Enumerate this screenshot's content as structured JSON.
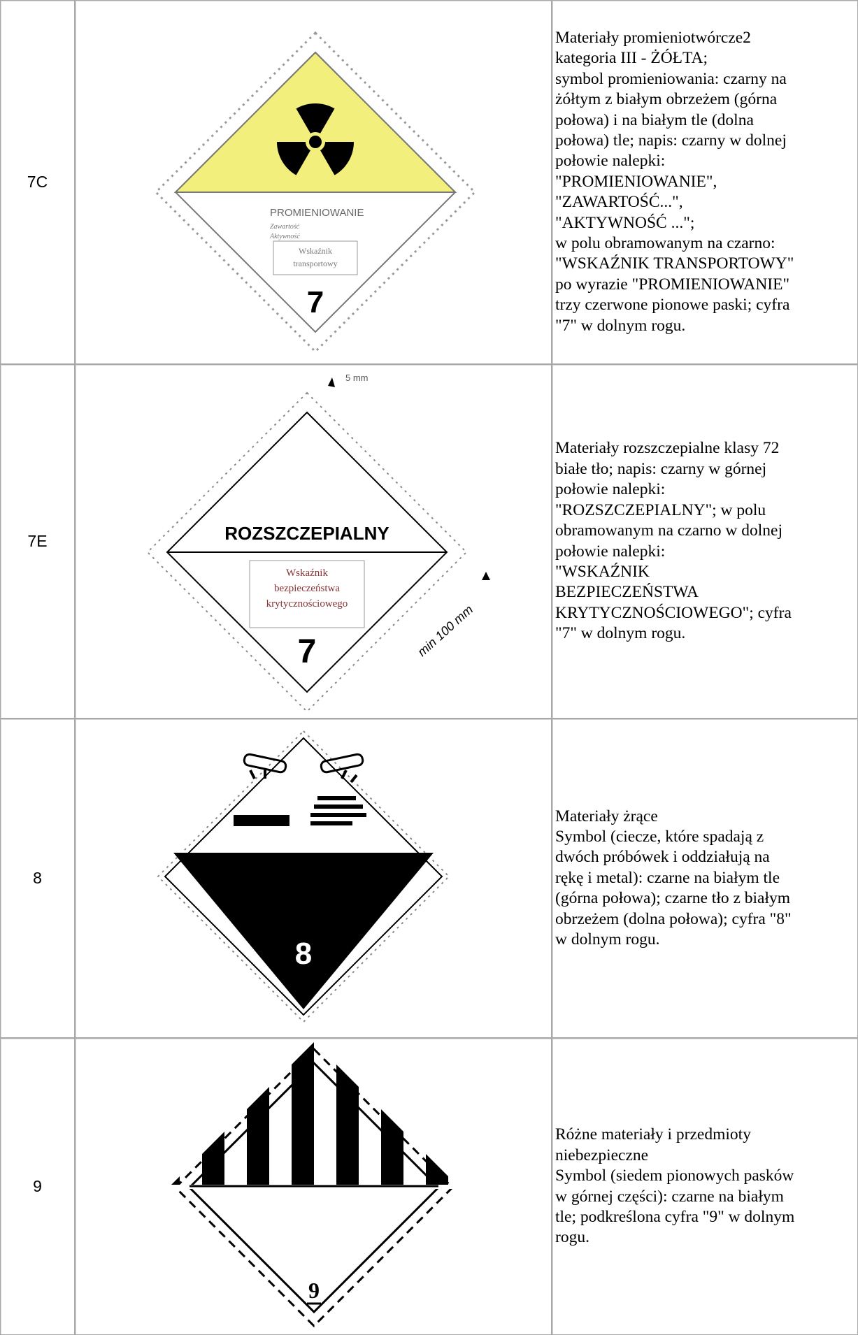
{
  "rows": [
    {
      "code": "7C",
      "description": [
        "Materiały promieniotwórcze2",
        "kategoria III - ŻÓŁTA;",
        "symbol promieniowania: czarny na",
        "żółtym z białym obrzeżem (górna",
        "połowa) i na białym tle (dolna",
        "połowa) tle; napis: czarny w dolnej",
        "połowie nalepki:",
        "\"PROMIENIOWANIE\",",
        "\"ZAWARTOŚĆ...\",",
        "\"AKTYWNOŚĆ ...\";",
        "w polu obramowanym na czarno:",
        "\"WSKAŹNIK TRANSPORTOWY\"",
        "po wyrazie \"PROMIENIOWANIE\"",
        "trzy czerwone pionowe paski; cyfra",
        "\"7\" w dolnym rogu."
      ],
      "placard": {
        "heading": "PROMIENIOWANIE",
        "small": [
          "Zawartość",
          "Aktywność"
        ],
        "box": [
          "Wskaźnik",
          "transportowy"
        ],
        "number": "7"
      }
    },
    {
      "code": "7E",
      "description": [
        "Materiały rozszczepialne klasy 72",
        "białe tło; napis: czarny w górnej",
        "połowie nalepki:",
        "\"ROZSZCZEPIALNY\"; w polu",
        "obramowanym na czarno w dolnej",
        "połowie nalepki:",
        "\"WSKAŹNIK",
        "BEZPIECZEŃSTWA",
        "KRYTYCZNOŚCIOWEGO\"; cyfra",
        "\"7\" w dolnym rogu."
      ],
      "placard": {
        "top_dimension": "5 mm",
        "heading": "ROZSZCZEPIALNY",
        "box": [
          "Wskaźnik",
          "bezpieczeństwa",
          "krytycznościowego"
        ],
        "number": "7",
        "side_dimension": "min 100 mm"
      }
    },
    {
      "code": "8",
      "description": [
        "Materiały żrące",
        "Symbol (ciecze, które spadają z",
        "dwóch próbówek i oddziałują na",
        "rękę i metal): czarne na białym tle",
        "(górna połowa); czarne tło z białym",
        "obrzeżem (dolna połowa); cyfra \"8\"",
        "w dolnym rogu."
      ],
      "placard": {
        "number": "8"
      }
    },
    {
      "code": "9",
      "description": [
        "Różne materiały i przedmioty",
        "niebezpieczne",
        "Symbol (siedem pionowych pasków",
        "w górnej części): czarne na białym",
        "tle; podkreślona cyfra \"9\" w dolnym",
        "rogu."
      ],
      "placard": {
        "number": "9"
      }
    }
  ]
}
